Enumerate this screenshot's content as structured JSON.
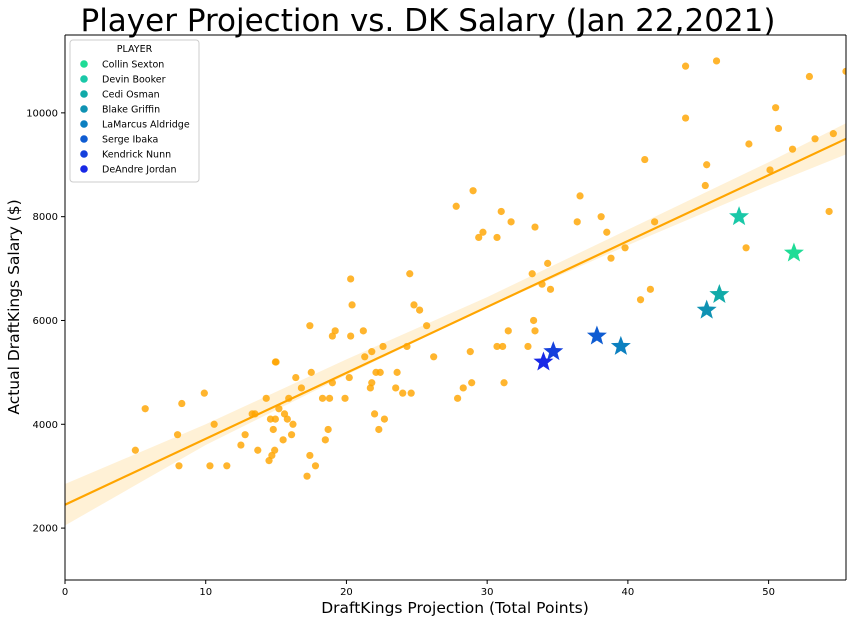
{
  "chart_data": {
    "type": "scatter",
    "title": "Player Projection vs. DK Salary (Jan 22,2021)",
    "xlabel": "DraftKings Projection (Total Points)",
    "ylabel": "Actual DraftKings Salary ($)",
    "xlim": [
      0,
      55.5
    ],
    "ylim": [
      1000,
      11500
    ],
    "xticks": [
      0,
      10,
      20,
      30,
      40,
      50
    ],
    "yticks": [
      2000,
      4000,
      6000,
      8000,
      10000
    ],
    "grid": false,
    "legend": {
      "title": "PLAYER",
      "position": "top-left"
    },
    "regression": {
      "color": "#ffa500",
      "line": [
        [
          0,
          2450
        ],
        [
          55.5,
          9500
        ]
      ],
      "band_lower": [
        [
          0,
          2050
        ],
        [
          10,
          3600
        ],
        [
          20,
          4950
        ],
        [
          30,
          6250
        ],
        [
          40,
          7450
        ],
        [
          50,
          8600
        ],
        [
          55.5,
          9200
        ]
      ],
      "band_upper": [
        [
          0,
          2850
        ],
        [
          10,
          4000
        ],
        [
          20,
          5250
        ],
        [
          30,
          6450
        ],
        [
          40,
          7750
        ],
        [
          50,
          9050
        ],
        [
          55.5,
          9800
        ]
      ]
    },
    "series": [
      {
        "color": "#ffa500",
        "marker": "circle",
        "points": [
          [
            5,
            3500
          ],
          [
            5.7,
            4300
          ],
          [
            8,
            3800
          ],
          [
            8.1,
            3200
          ],
          [
            8.3,
            4400
          ],
          [
            9.9,
            4600
          ],
          [
            10.3,
            3200
          ],
          [
            10.6,
            4000
          ],
          [
            11.5,
            3200
          ],
          [
            12.5,
            3600
          ],
          [
            12.8,
            3800
          ],
          [
            13.3,
            4200
          ],
          [
            13.5,
            4200
          ],
          [
            13.7,
            3500
          ],
          [
            14.3,
            4500
          ],
          [
            14.5,
            3300
          ],
          [
            14.6,
            4100
          ],
          [
            14.7,
            3400
          ],
          [
            14.8,
            3900
          ],
          [
            14.9,
            3500
          ],
          [
            14.95,
            4100
          ],
          [
            14.95,
            5200
          ],
          [
            15,
            5200
          ],
          [
            15.2,
            4300
          ],
          [
            15.5,
            3700
          ],
          [
            15.6,
            4200
          ],
          [
            15.8,
            4100
          ],
          [
            15.9,
            4500
          ],
          [
            16.1,
            3800
          ],
          [
            16.2,
            4000
          ],
          [
            16.4,
            4900
          ],
          [
            16.8,
            4700
          ],
          [
            17.2,
            3000
          ],
          [
            17.4,
            5900
          ],
          [
            17.5,
            5000
          ],
          [
            17.4,
            3400
          ],
          [
            17.8,
            3200
          ],
          [
            18.3,
            4500
          ],
          [
            18.5,
            3700
          ],
          [
            18.7,
            3900
          ],
          [
            18.8,
            4500
          ],
          [
            19,
            5700
          ],
          [
            19,
            4800
          ],
          [
            19.2,
            5800
          ],
          [
            19.9,
            4500
          ],
          [
            20.2,
            4900
          ],
          [
            20.3,
            6800
          ],
          [
            20.3,
            5700
          ],
          [
            20.4,
            6300
          ],
          [
            21.2,
            5800
          ],
          [
            21.3,
            5300
          ],
          [
            21.7,
            4700
          ],
          [
            21.8,
            4800
          ],
          [
            21.8,
            5400
          ],
          [
            22,
            4200
          ],
          [
            22.1,
            5000
          ],
          [
            22.3,
            3900
          ],
          [
            22.4,
            5000
          ],
          [
            22.6,
            5500
          ],
          [
            22.7,
            4100
          ],
          [
            23.5,
            4700
          ],
          [
            23.6,
            5000
          ],
          [
            24,
            4600
          ],
          [
            24.3,
            5500
          ],
          [
            24.5,
            6900
          ],
          [
            24.6,
            4600
          ],
          [
            24.8,
            6300
          ],
          [
            25.2,
            6200
          ],
          [
            25.7,
            5900
          ],
          [
            26.2,
            5300
          ],
          [
            27.8,
            8200
          ],
          [
            27.9,
            4500
          ],
          [
            28.3,
            4700
          ],
          [
            28.8,
            5400
          ],
          [
            28.9,
            4800
          ],
          [
            29,
            8500
          ],
          [
            29.4,
            7600
          ],
          [
            29.7,
            7700
          ],
          [
            30.7,
            5500
          ],
          [
            30.7,
            7600
          ],
          [
            31,
            8100
          ],
          [
            31.1,
            5500
          ],
          [
            31.2,
            4800
          ],
          [
            31.5,
            5800
          ],
          [
            31.7,
            7900
          ],
          [
            32.9,
            5500
          ],
          [
            33.2,
            6900
          ],
          [
            33.3,
            6000
          ],
          [
            33.4,
            5800
          ],
          [
            33.4,
            7800
          ],
          [
            33.9,
            6700
          ],
          [
            34.3,
            7100
          ],
          [
            34.5,
            6600
          ],
          [
            36.4,
            7900
          ],
          [
            36.6,
            8400
          ],
          [
            38.1,
            8000
          ],
          [
            38.5,
            7700
          ],
          [
            38.8,
            7200
          ],
          [
            39.8,
            7400
          ],
          [
            40.9,
            6400
          ],
          [
            41.2,
            9100
          ],
          [
            41.6,
            6600
          ],
          [
            41.9,
            7900
          ],
          [
            44.1,
            10900
          ],
          [
            44.1,
            9900
          ],
          [
            45.5,
            8600
          ],
          [
            45.6,
            9000
          ],
          [
            46.3,
            11000
          ],
          [
            48.4,
            7400
          ],
          [
            48.6,
            9400
          ],
          [
            50.1,
            8900
          ],
          [
            50.5,
            10100
          ],
          [
            50.7,
            9700
          ],
          [
            51.7,
            9300
          ],
          [
            52.9,
            10700
          ],
          [
            53.3,
            9500
          ],
          [
            54.3,
            8100
          ],
          [
            54.6,
            9600
          ],
          [
            55.5,
            10800
          ]
        ]
      },
      {
        "name": "Collin Sexton",
        "color": "#1fdc96",
        "marker": "star",
        "points": [
          [
            51.8,
            7300
          ]
        ]
      },
      {
        "name": "Devin Booker",
        "color": "#1ac8a8",
        "marker": "star",
        "points": [
          [
            47.9,
            8000
          ]
        ]
      },
      {
        "name": "Cedi Osman",
        "color": "#11aaa8",
        "marker": "star",
        "points": [
          [
            46.5,
            6500
          ]
        ]
      },
      {
        "name": "Blake Griffin",
        "color": "#0f92b3",
        "marker": "star",
        "points": [
          [
            45.6,
            6200
          ]
        ]
      },
      {
        "name": "LaMarcus Aldridge",
        "color": "#0c80c0",
        "marker": "star",
        "points": [
          [
            39.5,
            5500
          ]
        ]
      },
      {
        "name": "Serge Ibaka",
        "color": "#0f5cd2",
        "marker": "star",
        "points": [
          [
            37.8,
            5700
          ]
        ]
      },
      {
        "name": "Kendrick Nunn",
        "color": "#1540dc",
        "marker": "star",
        "points": [
          [
            34.7,
            5400
          ]
        ]
      },
      {
        "name": "DeAndre Jordan",
        "color": "#1828e6",
        "marker": "star",
        "points": [
          [
            34,
            5200
          ]
        ]
      }
    ]
  }
}
